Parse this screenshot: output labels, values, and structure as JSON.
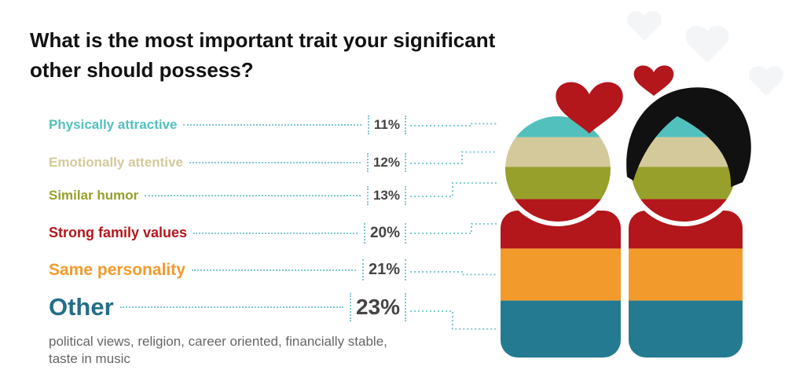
{
  "chart_data": {
    "type": "stacked-figure",
    "title": "What is the most important trait your significant other should possess?",
    "categories": [
      "Physically attractive",
      "Emotionally attentive",
      "Similar humor",
      "Strong family values",
      "Same personality",
      "Other"
    ],
    "values": [
      11,
      12,
      13,
      20,
      21,
      23
    ],
    "value_labels": [
      "11%",
      "12%",
      "13%",
      "20%",
      "21%",
      "23%"
    ],
    "colors": [
      "#52c0bc",
      "#d4c99a",
      "#97a02a",
      "#b3161b",
      "#f39a2c",
      "#247b91"
    ],
    "annotation": "political views, religion, career oriented, financially stable, taste in music"
  }
}
